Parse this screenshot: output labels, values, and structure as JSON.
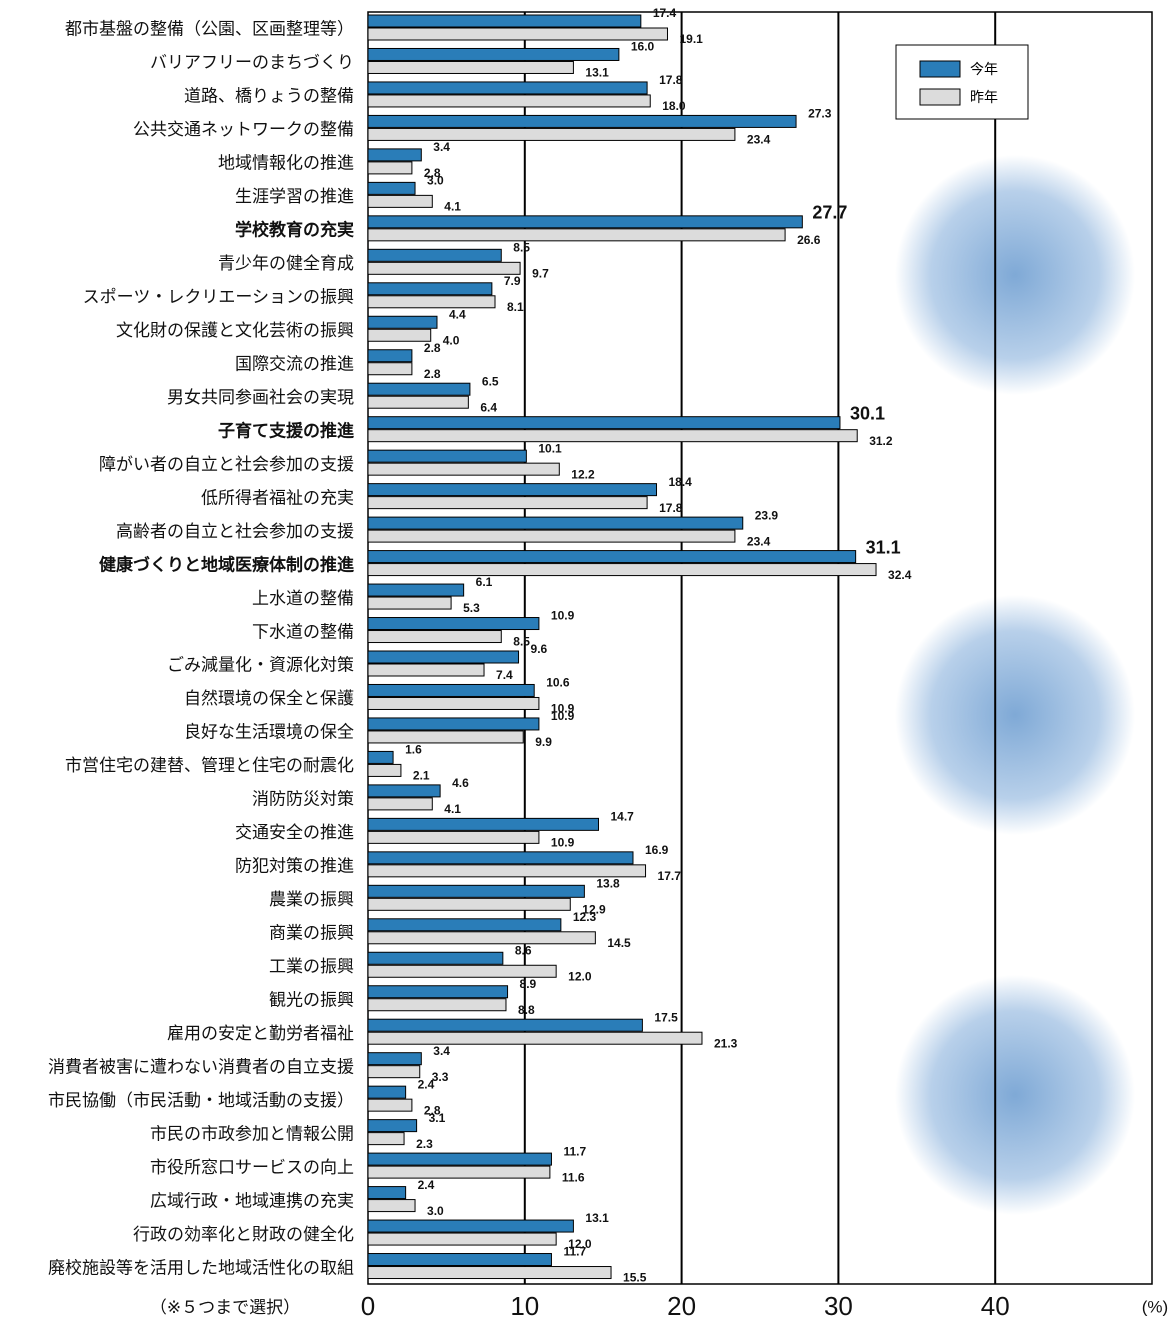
{
  "chart_data": {
    "type": "barh",
    "categories": [
      "都市基盤の整備（公園、区画整理等）",
      "バリアフリーのまちづくり",
      "道路、橋りょうの整備",
      "公共交通ネットワークの整備",
      "地域情報化の推進",
      "生涯学習の推進",
      "学校教育の充実",
      "青少年の健全育成",
      "スポーツ・レクリエーションの振興",
      "文化財の保護と文化芸術の振興",
      "国際交流の推進",
      "男女共同参画社会の実現",
      "子育て支援の推進",
      "障がい者の自立と社会参加の支援",
      "低所得者福祉の充実",
      "高齢者の自立と社会参加の支援",
      "健康づくりと地域医療体制の推進",
      "上水道の整備",
      "下水道の整備",
      "ごみ減量化・資源化対策",
      "自然環境の保全と保護",
      "良好な生活環境の保全",
      "市営住宅の建替、管理と住宅の耐震化",
      "消防防災対策",
      "交通安全の推進",
      "防犯対策の推進",
      "農業の振興",
      "商業の振興",
      "工業の振興",
      "観光の振興",
      "雇用の安定と勤労者福祉",
      "消費者被害に遭わない消費者の自立支援",
      "市民協働（市民活動・地域活動の支援）",
      "市民の市政参加と情報公開",
      "市役所窓口サービスの向上",
      "広域行政・地域連携の充実",
      "行政の効率化と財政の健全化",
      "廃校施設等を活用した地域活性化の取組"
    ],
    "series": [
      {
        "name": "今年",
        "color": "#2a7db8",
        "values": [
          17.4,
          16.0,
          17.8,
          27.3,
          3.4,
          3.0,
          27.7,
          8.5,
          7.9,
          4.4,
          2.8,
          6.5,
          30.1,
          10.1,
          18.4,
          23.9,
          31.1,
          6.1,
          10.9,
          9.6,
          10.6,
          10.9,
          1.6,
          4.6,
          14.7,
          16.9,
          13.8,
          12.3,
          8.6,
          8.9,
          17.5,
          3.4,
          2.4,
          3.1,
          11.7,
          2.4,
          13.1,
          11.7
        ],
        "value_labels": [
          "17.4",
          "16.0",
          "17.8",
          "27.3",
          "3.4",
          "3.0",
          "27.7",
          "8.5",
          "7.9",
          "4.4",
          "2.8",
          "6.5",
          "30.1",
          "10.1",
          "18.4",
          "23.9",
          "31.1",
          "6.1",
          "10.9",
          "9.6",
          "10.6",
          "10.9",
          "1.6",
          "4.6",
          "14.7",
          "16.9",
          "13.8",
          "12.3",
          "8.6",
          "8.9",
          "17.5",
          "3.4",
          "2.4",
          "3.1",
          "11.7",
          "2.4",
          "13.1",
          "11.7"
        ]
      },
      {
        "name": "昨年",
        "color": "#dcdcdc",
        "values": [
          19.1,
          13.1,
          18.0,
          23.4,
          2.8,
          4.1,
          26.6,
          9.7,
          8.1,
          4.0,
          2.8,
          6.4,
          31.2,
          12.2,
          17.8,
          23.4,
          32.4,
          5.3,
          8.5,
          7.4,
          10.9,
          9.9,
          2.1,
          4.1,
          10.9,
          17.7,
          12.9,
          14.5,
          12.0,
          8.8,
          21.3,
          3.3,
          2.8,
          2.3,
          11.6,
          3.0,
          12.0,
          15.5
        ],
        "value_labels": [
          "19.1",
          "13.1",
          "18.0",
          "23.4",
          "2.8",
          "4.1",
          "26.6",
          "9.7",
          "8.1",
          "4.0",
          "2.8",
          "6.4",
          "31.2",
          "12.2",
          "17.8",
          "23.4",
          "32.4",
          "5.3",
          "8.5",
          "7.4",
          "10.9",
          "9.9",
          "2.1",
          "4.1",
          "10.9",
          "17.7",
          "12.9",
          "14.5",
          "12.0",
          "8.8",
          "21.3",
          "3.3",
          "2.8",
          "2.3",
          "11.6",
          "3.0",
          "12.0",
          "15.5"
        ]
      }
    ],
    "xlim": [
      0,
      50
    ],
    "xticks": [
      0,
      10,
      20,
      30,
      40
    ],
    "x_unit": "(%)",
    "note": "（※５つまで選択）",
    "highlight": [
      6,
      12,
      16
    ],
    "highlight_color": "#2f86c0",
    "legend": "top-right",
    "grid": true
  }
}
